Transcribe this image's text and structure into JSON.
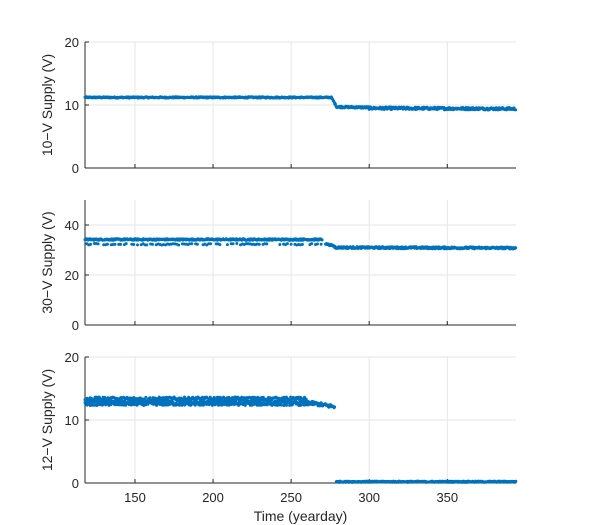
{
  "chart_data": [
    {
      "type": "scatter",
      "ylabel": "10−V Supply (V)",
      "xlim": [
        118,
        394
      ],
      "ylim": [
        0,
        20
      ],
      "yticks": [
        0,
        10,
        20
      ],
      "xticks": [
        150,
        200,
        250,
        300,
        350
      ],
      "show_xtick_labels": false,
      "grid": true,
      "color": "#0072BD",
      "segments": [
        {
          "x_start": 118,
          "x_end": 276,
          "y_start": 11.2,
          "y_end": 11.2,
          "noise": 0.1
        },
        {
          "x_start": 276,
          "x_end": 279,
          "y_start": 11.1,
          "y_end": 9.8,
          "noise": 0.1
        },
        {
          "x_start": 279,
          "x_end": 300,
          "y_start": 9.7,
          "y_end": 9.6,
          "noise": 0.15
        },
        {
          "x_start": 300,
          "x_end": 394,
          "y_start": 9.5,
          "y_end": 9.4,
          "noise": 0.2
        }
      ]
    },
    {
      "type": "scatter",
      "ylabel": "30−V Supply (V)",
      "xlim": [
        118,
        394
      ],
      "ylim": [
        0,
        50
      ],
      "yticks": [
        0,
        20,
        40
      ],
      "xticks": [
        150,
        200,
        250,
        300,
        350
      ],
      "show_xtick_labels": false,
      "grid": true,
      "color": "#0072BD",
      "segments": [
        {
          "x_start": 118,
          "x_end": 270,
          "y_start": 34.2,
          "y_end": 34.2,
          "noise": 0.3
        },
        {
          "x_start": 118,
          "x_end": 272,
          "y_start": 32.3,
          "y_end": 32.3,
          "noise": 0.3,
          "sparse": true
        },
        {
          "x_start": 272,
          "x_end": 278,
          "y_start": 32.5,
          "y_end": 31.5,
          "noise": 0.3
        },
        {
          "x_start": 278,
          "x_end": 394,
          "y_start": 31.0,
          "y_end": 30.8,
          "noise": 0.4
        }
      ]
    },
    {
      "type": "scatter",
      "ylabel": "12−V Supply (V)",
      "xlabel": "Time (yearday)",
      "xlim": [
        118,
        394
      ],
      "ylim": [
        0,
        20
      ],
      "yticks": [
        0,
        10,
        20
      ],
      "xticks": [
        150,
        200,
        250,
        300,
        350
      ],
      "show_xtick_labels": true,
      "grid": true,
      "color": "#0072BD",
      "segments": [
        {
          "x_start": 118,
          "x_end": 260,
          "y_start": 13.3,
          "y_end": 13.3,
          "noise": 0.35
        },
        {
          "x_start": 118,
          "x_end": 265,
          "y_start": 12.6,
          "y_end": 12.6,
          "noise": 0.3
        },
        {
          "x_start": 260,
          "x_end": 278,
          "y_start": 12.8,
          "y_end": 12.1,
          "noise": 0.3
        },
        {
          "x_start": 278,
          "x_end": 279,
          "y_start": 7.8,
          "y_end": 0.5,
          "noise": 0.0,
          "sparse": true
        },
        {
          "x_start": 279,
          "x_end": 394,
          "y_start": 0.2,
          "y_end": 0.2,
          "noise": 0.1
        }
      ]
    }
  ]
}
